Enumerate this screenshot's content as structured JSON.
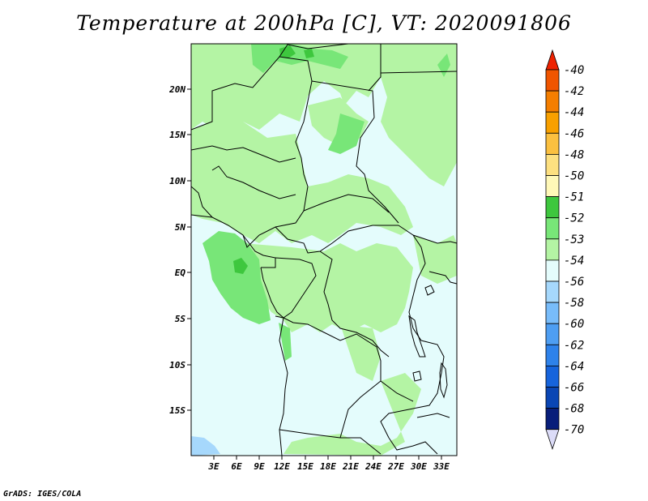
{
  "title": "Temperature at 200hPa [C], VT: 2020091806",
  "credit": "GrADS: IGES/COLA",
  "map": {
    "region": "Central Africa",
    "lon_range": [
      0,
      35
    ],
    "lat_range": [
      -20,
      25
    ],
    "lat_ticks": [
      "20N",
      "15N",
      "10N",
      "5N",
      "EQ",
      "5S",
      "10S",
      "15S"
    ],
    "lon_ticks": [
      "3E",
      "6E",
      "9E",
      "12E",
      "15E",
      "18E",
      "21E",
      "24E",
      "27E",
      "30E",
      "33E"
    ]
  },
  "colorbar": {
    "labels": [
      "-40",
      "-42",
      "-44",
      "-46",
      "-48",
      "-50",
      "-51",
      "-52",
      "-53",
      "-54",
      "-56",
      "-58",
      "-60",
      "-62",
      "-64",
      "-66",
      "-68",
      "-70"
    ],
    "colors": [
      "#ee2200",
      "#f05500",
      "#f47e00",
      "#f8a000",
      "#fbc040",
      "#fde080",
      "#fff8b8",
      "#3ec73e",
      "#78e678",
      "#b4f4a4",
      "#e4fcfc",
      "#a6d8fc",
      "#78bcfa",
      "#4e9ef2",
      "#2e82ea",
      "#1664dc",
      "#0a46b4",
      "#081e7a",
      "#dcdcf8"
    ]
  }
}
